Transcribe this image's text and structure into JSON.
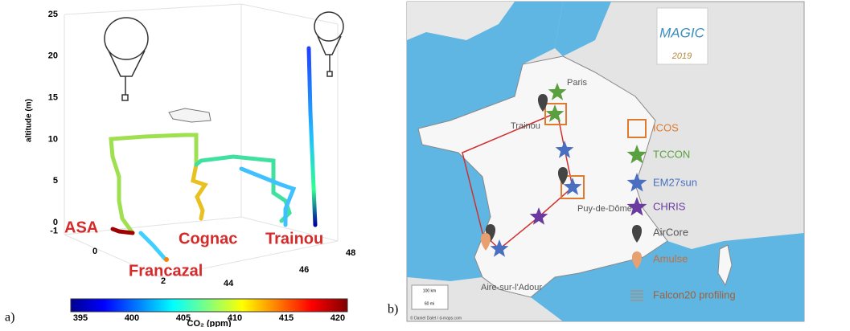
{
  "panel_a": {
    "label": "a)",
    "z_label": "altitude (m)",
    "zticks": [
      -1,
      0,
      5,
      10,
      15,
      20,
      25
    ],
    "x_ticks": [
      0,
      2
    ],
    "y_ticks": [
      44,
      46,
      48
    ],
    "sites": [
      "ASA",
      "Cognac",
      "Trainou",
      "Francazal"
    ],
    "colorbar": {
      "label": "CO₂ (ppm)",
      "ticks": [
        395,
        400,
        405,
        410,
        415,
        420
      ]
    }
  },
  "panel_b": {
    "label": "b)",
    "logo": "MAGIC",
    "logo_year": "2019",
    "cities": [
      "Paris",
      "Trainou",
      "Puy-de-Dôme",
      "Aire-sur-l'Adour"
    ],
    "legend": [
      "ICOS",
      "TCCON",
      "EM27sun",
      "CHRIS",
      "AirCore",
      "Amulse",
      "Falcon20 profiling"
    ],
    "scale": [
      "100 km",
      "60 mi"
    ],
    "credit": "© Daniel Dalet / d-maps.com"
  }
}
